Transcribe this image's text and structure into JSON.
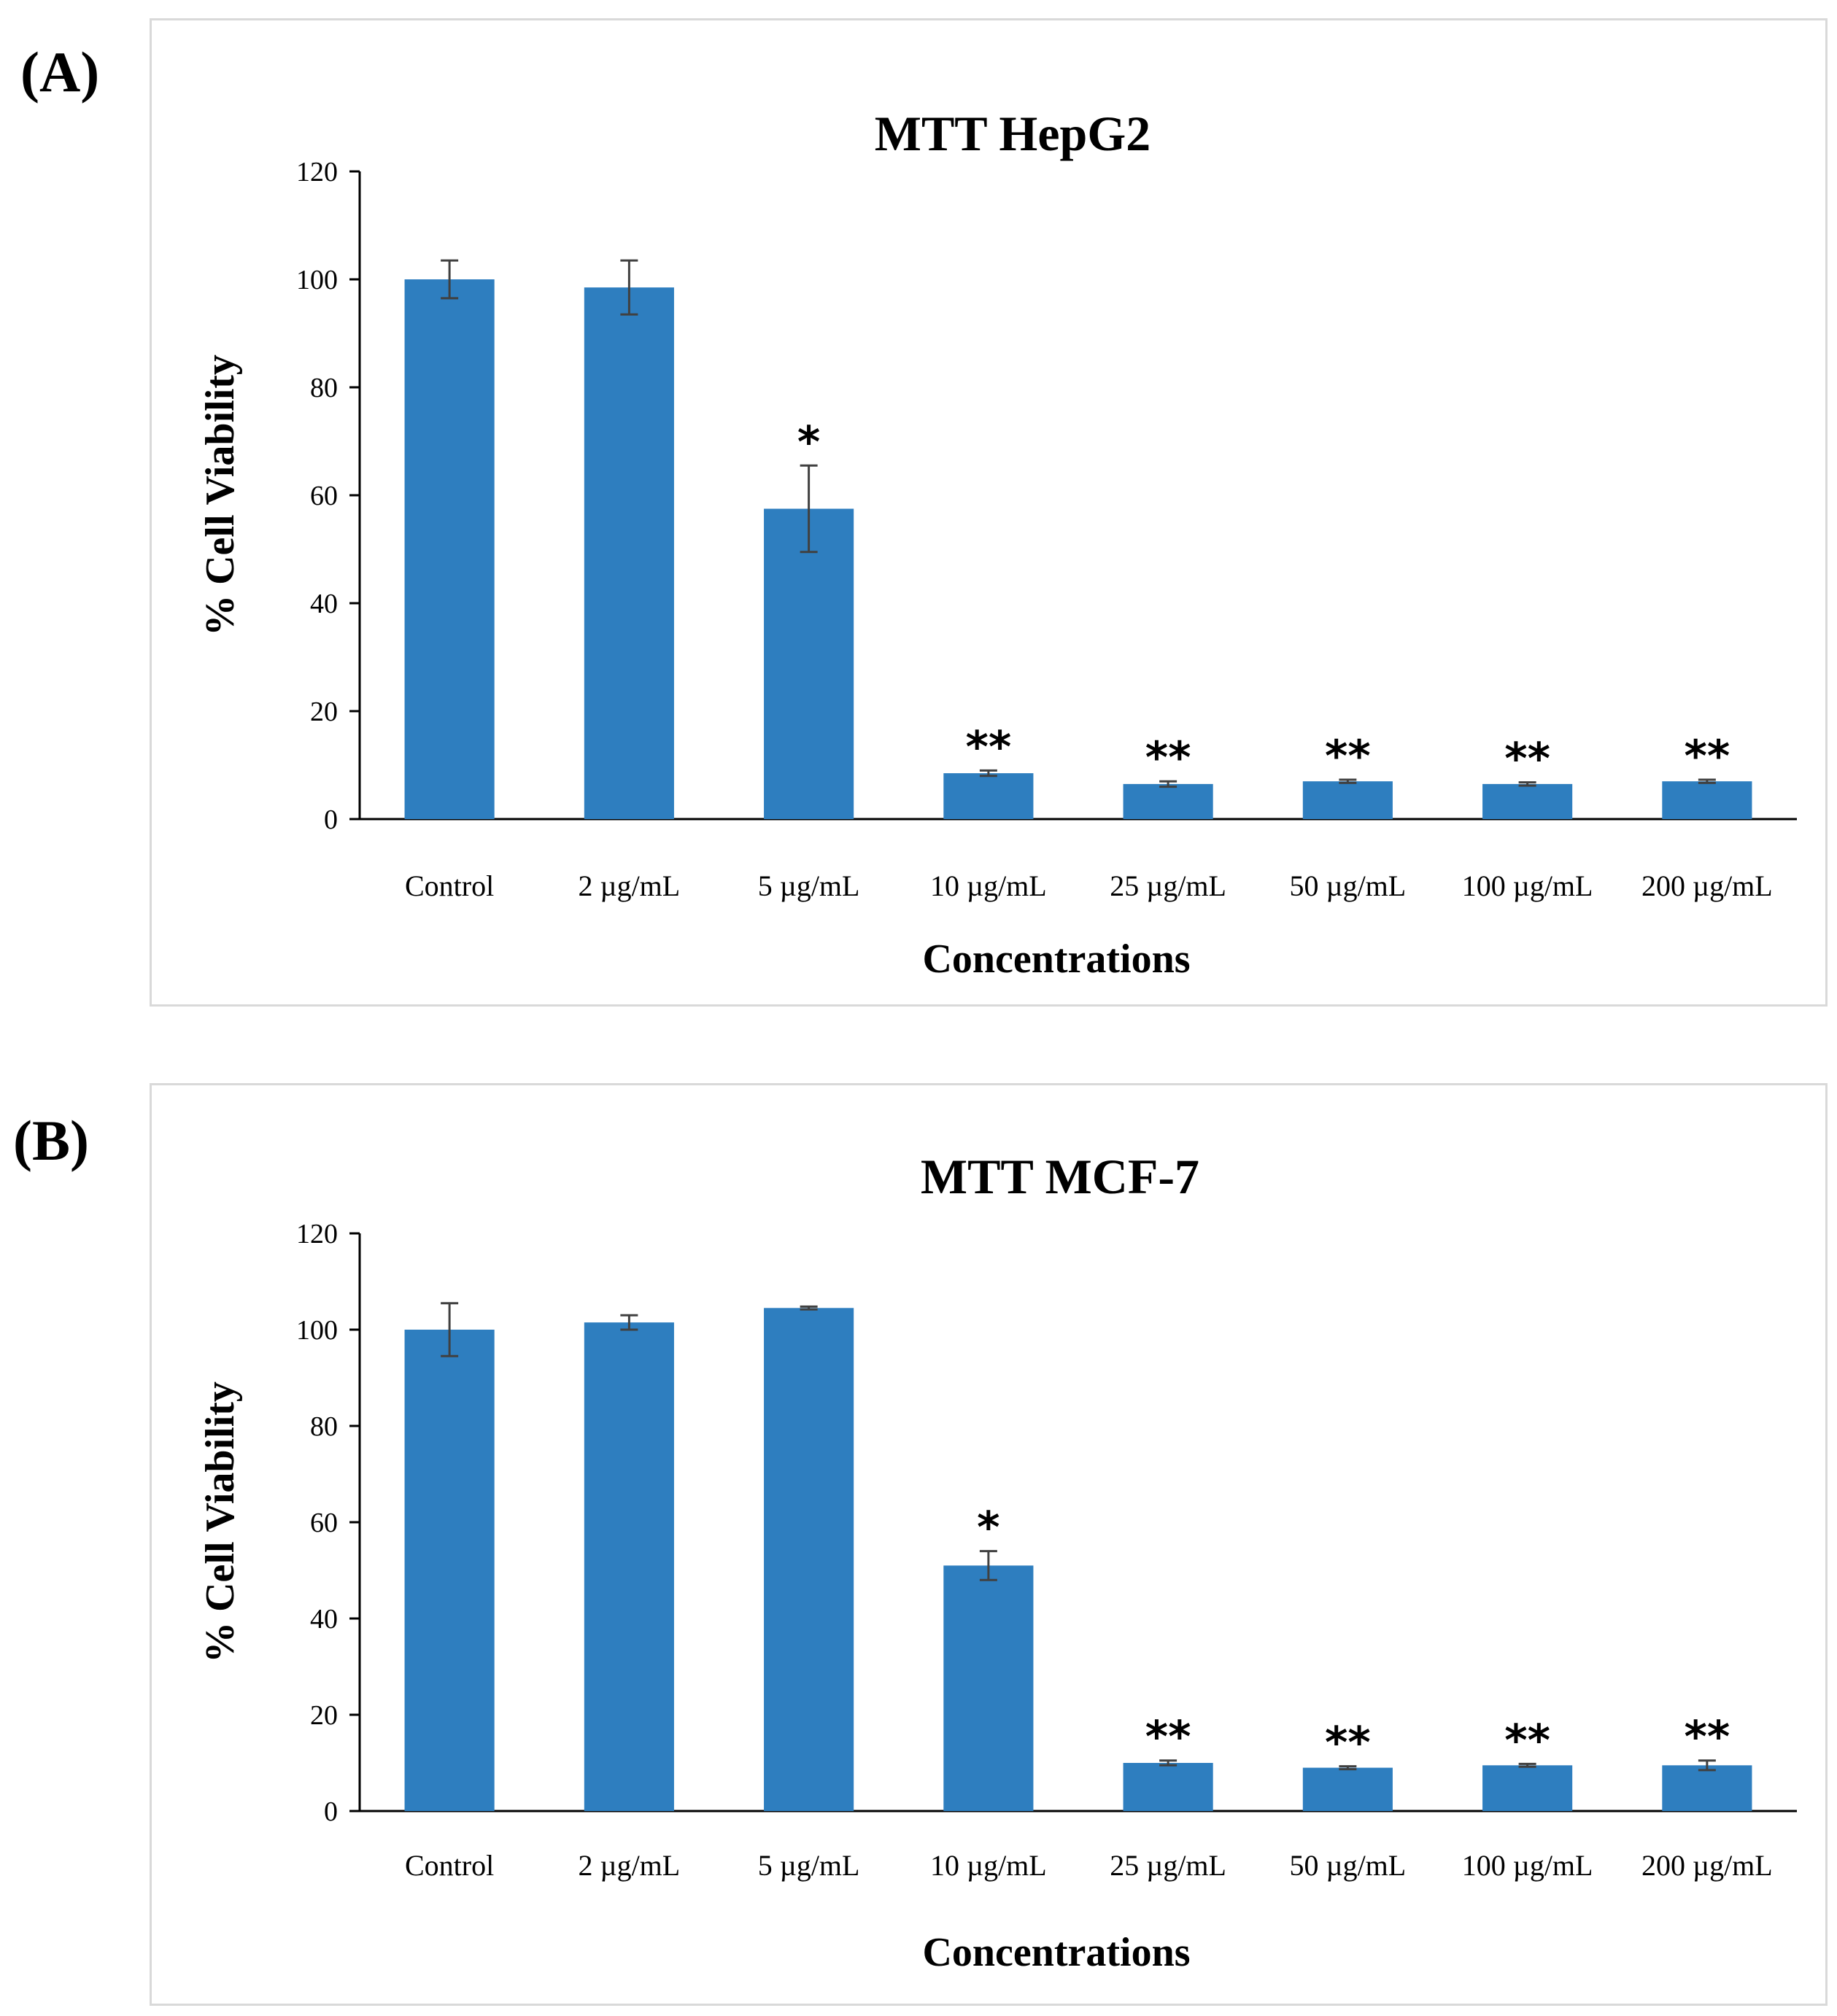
{
  "panels": [
    {
      "letter": "(A)",
      "chart_data": {
        "type": "bar",
        "title": "MTT HepG2",
        "xlabel": "Concentrations",
        "ylabel": "% Cell Viability",
        "ylim": [
          0,
          120
        ],
        "yticks": [
          0,
          20,
          40,
          60,
          80,
          100,
          120
        ],
        "categories": [
          "Control",
          "2 µg/mL",
          "5 µg/mL",
          "10 µg/mL",
          "25 µg/mL",
          "50 µg/mL",
          "100 µg/mL",
          "200 µg/mL"
        ],
        "values": [
          100,
          98.5,
          57.5,
          8.5,
          6.5,
          7,
          6.5,
          7
        ],
        "errors": [
          3.5,
          5,
          8,
          0.5,
          0.5,
          0.3,
          0.3,
          0.3
        ],
        "significance": [
          "",
          "",
          "*",
          "**",
          "**",
          "**",
          "**",
          "**"
        ],
        "bar_color": "#2e7ebf",
        "grid": false
      }
    },
    {
      "letter": "(B)",
      "chart_data": {
        "type": "bar",
        "title": "MTT MCF-7",
        "xlabel": "Concentrations",
        "ylabel": "% Cell Viability",
        "ylim": [
          0,
          120
        ],
        "yticks": [
          0,
          20,
          40,
          60,
          80,
          100,
          120
        ],
        "categories": [
          "Control",
          "2 µg/mL",
          "5 µg/mL",
          "10 µg/mL",
          "25 µg/mL",
          "50 µg/mL",
          "100 µg/mL",
          "200 µg/mL"
        ],
        "values": [
          100,
          101.5,
          104.5,
          51,
          10,
          9,
          9.5,
          9.5
        ],
        "errors": [
          5.5,
          1.5,
          0.3,
          3,
          0.5,
          0.3,
          0.3,
          1
        ],
        "significance": [
          "",
          "",
          "",
          "*",
          "**",
          "**",
          "**",
          "**"
        ],
        "bar_color": "#2e7ebf",
        "grid": false
      }
    }
  ]
}
